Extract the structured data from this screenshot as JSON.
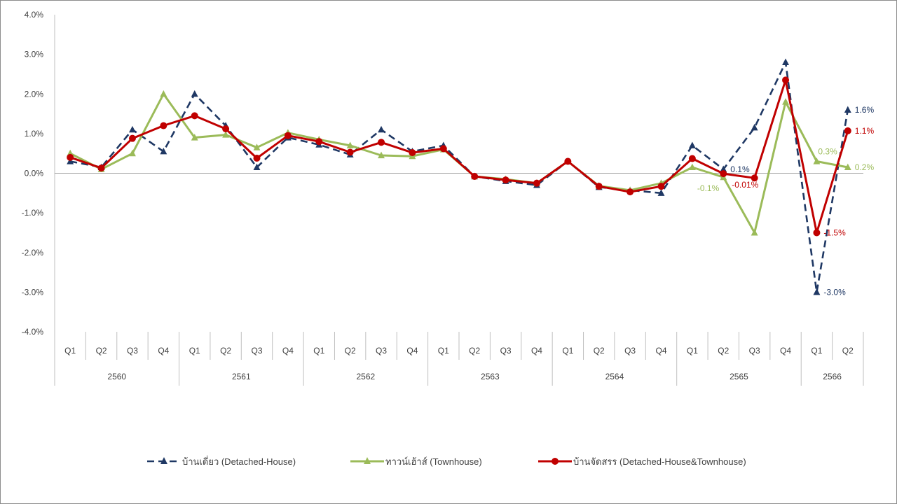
{
  "chart_data": {
    "type": "line",
    "ylim": [
      -4.0,
      4.0
    ],
    "y_ticks": [
      "4.0%",
      "3.0%",
      "2.0%",
      "1.0%",
      "0.0%",
      "-1.0%",
      "-2.0%",
      "-3.0%",
      "-4.0%"
    ],
    "y_tick_values": [
      4,
      3,
      2,
      1,
      0,
      -1,
      -2,
      -3,
      -4
    ],
    "groups": [
      {
        "year": "2560",
        "quarters": [
          "Q1",
          "Q2",
          "Q3",
          "Q4"
        ]
      },
      {
        "year": "2561",
        "quarters": [
          "Q1",
          "Q2",
          "Q3",
          "Q4"
        ]
      },
      {
        "year": "2562",
        "quarters": [
          "Q1",
          "Q2",
          "Q3",
          "Q4"
        ]
      },
      {
        "year": "2563",
        "quarters": [
          "Q1",
          "Q2",
          "Q3",
          "Q4"
        ]
      },
      {
        "year": "2564",
        "quarters": [
          "Q1",
          "Q2",
          "Q3",
          "Q4"
        ]
      },
      {
        "year": "2565",
        "quarters": [
          "Q1",
          "Q2",
          "Q3",
          "Q4"
        ]
      },
      {
        "year": "2566",
        "quarters": [
          "Q1",
          "Q2"
        ]
      }
    ],
    "legend_position": "bottom",
    "series": [
      {
        "name": "บ้านเดี่ยว (Detached-House)",
        "color": "#1f3864",
        "dash": true,
        "marker": "triangle",
        "values": [
          0.3,
          0.15,
          1.1,
          0.55,
          2.0,
          1.2,
          0.15,
          0.9,
          0.72,
          0.47,
          1.1,
          0.55,
          0.7,
          -0.08,
          -0.2,
          -0.3,
          0.3,
          -0.35,
          -0.43,
          -0.5,
          0.7,
          0.1,
          1.15,
          2.8,
          -3.0,
          1.6
        ]
      },
      {
        "name": "ทาวน์เฮ้าส์ (Townhouse)",
        "color": "#9bbb59",
        "dash": false,
        "marker": "triangle",
        "values": [
          0.5,
          0.1,
          0.5,
          2.0,
          0.9,
          0.97,
          0.65,
          1.02,
          0.85,
          0.7,
          0.45,
          0.43,
          0.6,
          -0.08,
          -0.15,
          -0.25,
          0.3,
          -0.32,
          -0.43,
          -0.25,
          0.15,
          -0.1,
          -1.5,
          1.8,
          0.3,
          0.15
        ]
      },
      {
        "name": "บ้านจัดสรร (Detached-House&Townhouse)",
        "color": "#c00000",
        "dash": false,
        "marker": "circle",
        "values": [
          0.4,
          0.13,
          0.88,
          1.2,
          1.45,
          1.12,
          0.38,
          0.95,
          0.8,
          0.53,
          0.78,
          0.52,
          0.62,
          -0.08,
          -0.17,
          -0.25,
          0.3,
          -0.33,
          -0.47,
          -0.33,
          0.37,
          -0.01,
          -0.12,
          2.35,
          -1.5,
          1.07
        ]
      }
    ],
    "annotations": [
      {
        "text": "0.1%",
        "series": 0,
        "index": 21,
        "color": "#1f3864",
        "anchor": "right"
      },
      {
        "text": "1.6%",
        "series": 0,
        "index": 25,
        "color": "#1f3864",
        "anchor": "right"
      },
      {
        "text": "-3.0%",
        "series": 0,
        "index": 24,
        "color": "#1f3864",
        "anchor": "right"
      },
      {
        "text": "-0.1%",
        "series": 1,
        "index": 21,
        "color": "#9bbb59",
        "anchor": "below-left"
      },
      {
        "text": "0.3%",
        "series": 1,
        "index": 24,
        "color": "#9bbb59",
        "anchor": "above-right"
      },
      {
        "text": "0.2%",
        "series": 1,
        "index": 25,
        "color": "#9bbb59",
        "anchor": "right"
      },
      {
        "text": "-0.01%",
        "series": 2,
        "index": 21,
        "color": "#c00000",
        "anchor": "below-right"
      },
      {
        "text": "-1.5%",
        "series": 2,
        "index": 24,
        "color": "#c00000",
        "anchor": "right"
      },
      {
        "text": "1.1%",
        "series": 2,
        "index": 25,
        "color": "#c00000",
        "anchor": "right"
      }
    ]
  }
}
